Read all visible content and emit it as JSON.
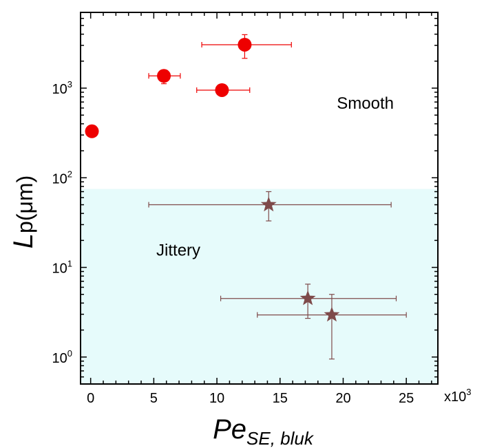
{
  "chart_data": {
    "type": "scatter",
    "x_scale": "linear",
    "y_scale": "log",
    "xlim": [
      -0.8,
      27.5
    ],
    "ylim": [
      0.5,
      7000
    ],
    "xlabel": {
      "main": "Pe",
      "sub": "SE, bluk"
    },
    "ylabel": {
      "main": "L",
      "rest": "p(μm)"
    },
    "x_multiplier": {
      "base": "x10",
      "exp": "3"
    },
    "x_ticks": [
      {
        "value": 0,
        "label": "0"
      },
      {
        "value": 5,
        "label": "5"
      },
      {
        "value": 10,
        "label": "10"
      },
      {
        "value": 15,
        "label": "15"
      },
      {
        "value": 20,
        "label": "20"
      },
      {
        "value": 25,
        "label": "25"
      }
    ],
    "y_ticks": [
      {
        "value": 1,
        "base": "10",
        "exp": "0"
      },
      {
        "value": 10,
        "base": "10",
        "exp": "1"
      },
      {
        "value": 100,
        "base": "10",
        "exp": "2"
      },
      {
        "value": 1000,
        "base": "10",
        "exp": "3"
      }
    ],
    "regions": [
      {
        "label": "Smooth",
        "y_from": 75,
        "y_to": 7000,
        "color": "#ffffff",
        "label_at": [
          19.5,
          590
        ]
      },
      {
        "label": "Jittery",
        "y_from": 0.5,
        "y_to": 75,
        "color": "#e6fbfb",
        "label_at": [
          5.2,
          13.5
        ]
      }
    ],
    "series": [
      {
        "marker": "circle",
        "color": "#ee0000",
        "points": [
          {
            "x": 0.1,
            "y": 330
          },
          {
            "x": 5.8,
            "y": 1370,
            "xerr": [
              4.6,
              7.1
            ],
            "yerr": [
              1120,
              1520
            ]
          },
          {
            "x": 10.4,
            "y": 950,
            "xerr": [
              8.4,
              12.6
            ]
          },
          {
            "x": 12.2,
            "y": 3050,
            "xerr": [
              8.8,
              15.9
            ],
            "yerr": [
              2150,
              3950
            ]
          }
        ]
      },
      {
        "marker": "star",
        "color": "#7e4a4a",
        "points": [
          {
            "x": 14.1,
            "y": 50,
            "xerr": [
              4.6,
              23.8
            ],
            "yerr": [
              33,
              70
            ]
          },
          {
            "x": 17.2,
            "y": 4.5,
            "xerr": [
              10.3,
              24.2
            ],
            "yerr": [
              2.7,
              6.5
            ]
          },
          {
            "x": 19.1,
            "y": 2.95,
            "xerr": [
              13.2,
              25.0
            ],
            "yerr": [
              0.95,
              5.0
            ]
          }
        ]
      }
    ]
  }
}
